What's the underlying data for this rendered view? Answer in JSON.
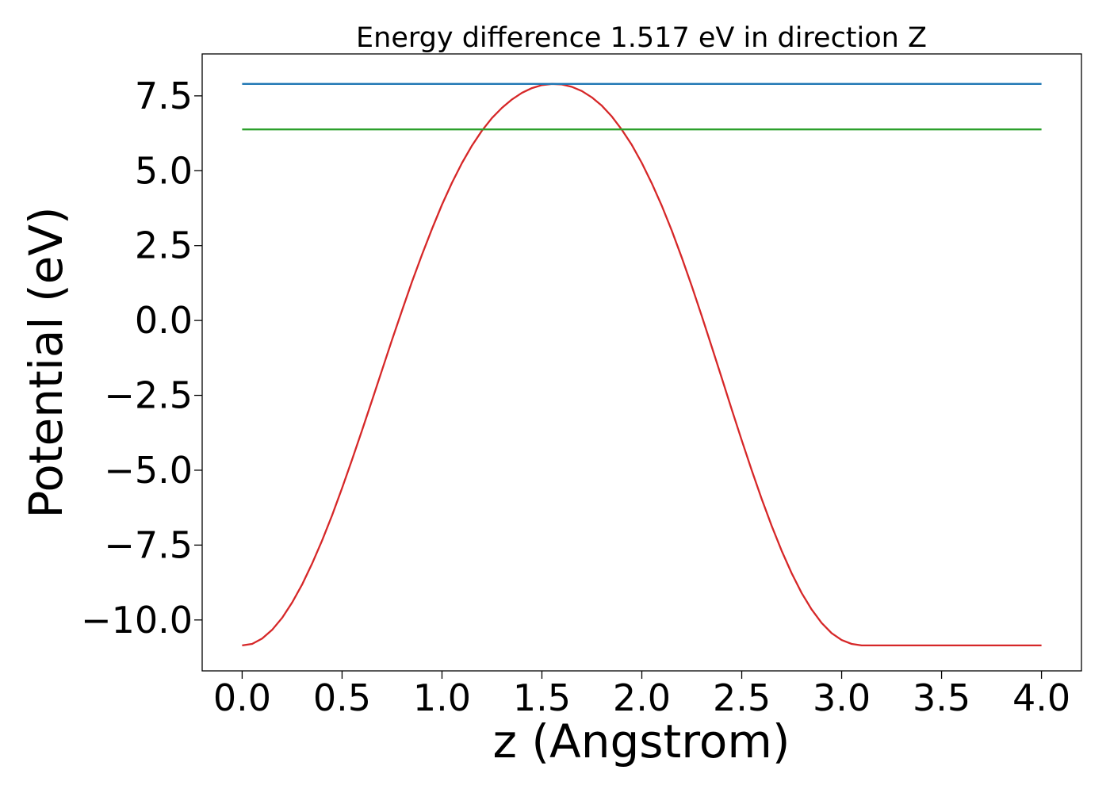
{
  "chart_data": {
    "type": "line",
    "title": "Energy difference 1.517 eV in direction Z",
    "xlabel": "z (Angstrom)",
    "ylabel": "Potential (eV)",
    "xlim": [
      -0.2,
      4.2
    ],
    "ylim": [
      -11.7,
      8.9
    ],
    "grid": false,
    "legend": "none",
    "x_ticks": [
      0.0,
      0.5,
      1.0,
      1.5,
      2.0,
      2.5,
      3.0,
      3.5,
      4.0
    ],
    "x_tick_labels": [
      "0.0",
      "0.5",
      "1.0",
      "1.5",
      "2.0",
      "2.5",
      "3.0",
      "3.5",
      "4.0"
    ],
    "y_ticks": [
      -10.0,
      -7.5,
      -5.0,
      -2.5,
      0.0,
      2.5,
      5.0,
      7.5
    ],
    "y_tick_labels": [
      "−10.0",
      "−7.5",
      "−5.0",
      "−2.5",
      "0.0",
      "2.5",
      "5.0",
      "7.5"
    ],
    "series": [
      {
        "color": "#d62728",
        "x": [
          0.0,
          0.05,
          0.1,
          0.15,
          0.2,
          0.25,
          0.3,
          0.35,
          0.4,
          0.45,
          0.5,
          0.55,
          0.6,
          0.65,
          0.7,
          0.75,
          0.8,
          0.85,
          0.9,
          0.95,
          1.0,
          1.05,
          1.1,
          1.15,
          1.2,
          1.25,
          1.3,
          1.35,
          1.4,
          1.45,
          1.5,
          1.55,
          1.6,
          1.65,
          1.7,
          1.75,
          1.8,
          1.85,
          1.9,
          1.95,
          2.0,
          2.05,
          2.1,
          2.15,
          2.2,
          2.25,
          2.3,
          2.35,
          2.4,
          2.45,
          2.5,
          2.55,
          2.6,
          2.65,
          2.7,
          2.75,
          2.8,
          2.85,
          2.9,
          2.95,
          3.0,
          3.05,
          3.1,
          3.15,
          3.2,
          3.25,
          3.3,
          3.35,
          3.4,
          3.45,
          3.5,
          3.55,
          3.6,
          3.65,
          3.7,
          3.75,
          3.8,
          3.85,
          3.9,
          3.95,
          4.0
        ],
        "y": [
          -10.85,
          -10.8,
          -10.62,
          -10.33,
          -9.93,
          -9.42,
          -8.82,
          -8.12,
          -7.35,
          -6.51,
          -5.6,
          -4.65,
          -3.67,
          -2.67,
          -1.66,
          -0.65,
          0.33,
          1.29,
          2.2,
          3.06,
          3.87,
          4.6,
          5.26,
          5.84,
          6.34,
          6.76,
          7.1,
          7.38,
          7.6,
          7.76,
          7.86,
          7.9,
          7.88,
          7.8,
          7.66,
          7.45,
          7.17,
          6.81,
          6.37,
          5.86,
          5.26,
          4.58,
          3.83,
          3.0,
          2.1,
          1.15,
          0.15,
          -0.88,
          -1.92,
          -2.97,
          -4.0,
          -5.0,
          -5.96,
          -6.86,
          -7.69,
          -8.44,
          -9.1,
          -9.65,
          -10.1,
          -10.44,
          -10.67,
          -10.8,
          -10.85,
          -10.85,
          -10.85,
          -10.85,
          -10.85,
          -10.85,
          -10.85,
          -10.85,
          -10.85,
          -10.85,
          -10.85,
          -10.85,
          -10.85,
          -10.85,
          -10.85,
          -10.85,
          -10.85,
          -10.85,
          -10.85
        ]
      },
      {
        "color": "#1f77b4",
        "x": [
          0.0,
          4.0
        ],
        "y": [
          7.9,
          7.9
        ]
      },
      {
        "color": "#2ca02c",
        "x": [
          0.0,
          4.0
        ],
        "y": [
          6.38,
          6.38
        ]
      }
    ]
  }
}
